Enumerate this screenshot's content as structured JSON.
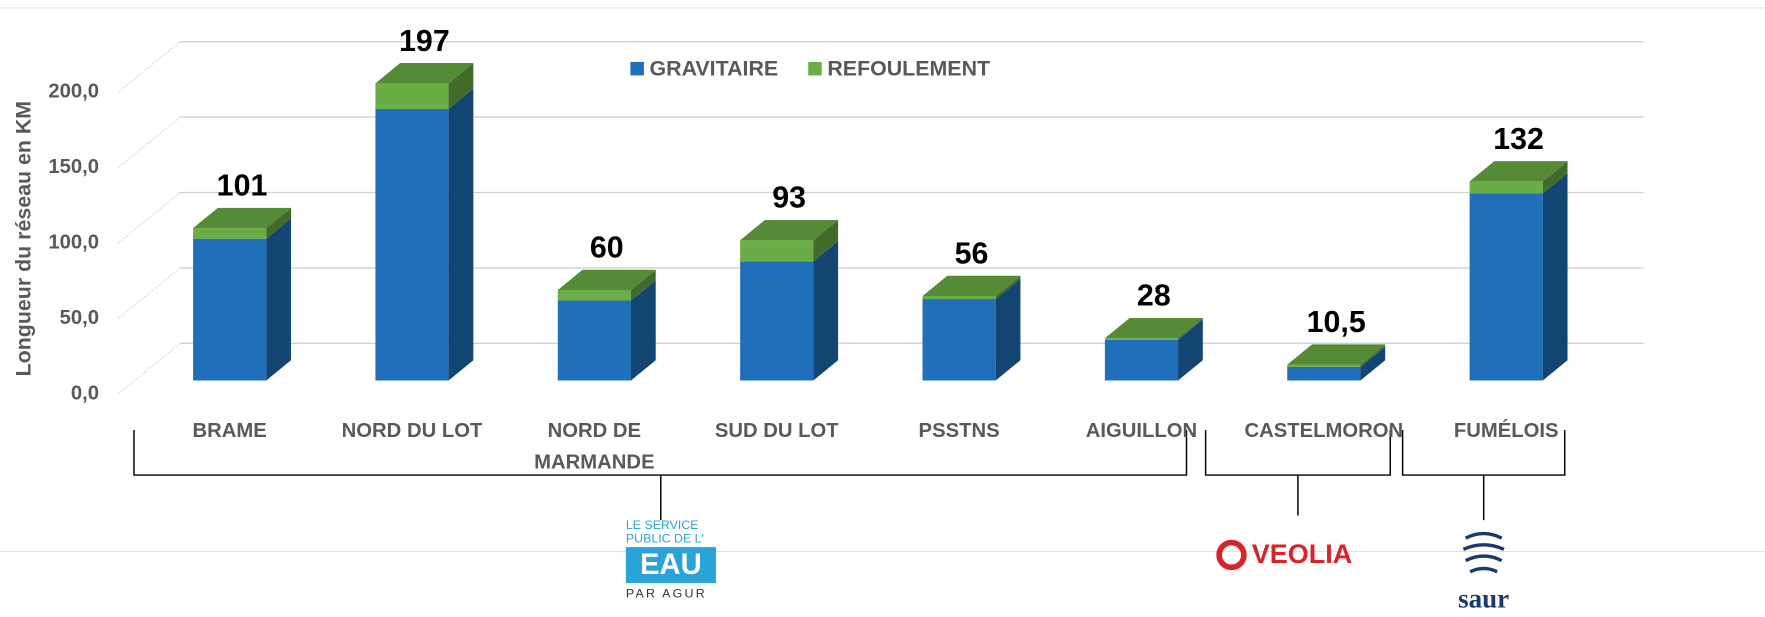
{
  "chart_data": {
    "type": "bar3d_stacked",
    "y_label": "Longueur du réseau en KM",
    "categories": [
      "BRAME",
      "NORD DU LOT",
      "NORD DE MARMANDE",
      "SUD DU LOT",
      "PSSTNS",
      "AIGUILLON",
      "CASTELMORON",
      "FUMÉLOIS"
    ],
    "series": [
      {
        "name": "GRAVITAIRE",
        "color": "#1f6fba",
        "values": [
          94,
          180,
          53,
          79,
          54,
          27,
          9,
          124
        ]
      },
      {
        "name": "REFOULEMENT",
        "color": "#6aad45",
        "values": [
          7,
          17,
          7,
          14,
          2,
          1,
          1.5,
          8
        ]
      }
    ],
    "totals": [
      101,
      197,
      60,
      93,
      56,
      28,
      10.5,
      132
    ],
    "total_labels": [
      "101",
      "197",
      "60",
      "93",
      "56",
      "28",
      "10,5",
      "132"
    ],
    "ylim": [
      0,
      200
    ],
    "yticks": [
      {
        "value": 0,
        "label": "0,0"
      },
      {
        "value": 50,
        "label": "50,0"
      },
      {
        "value": 100,
        "label": "100,0"
      },
      {
        "value": 150,
        "label": "150,0"
      },
      {
        "value": 200,
        "label": "200,0"
      }
    ],
    "grid": true,
    "legend": "top"
  },
  "groups": [
    {
      "logo": {
        "lines": [
          "LE SERVICE",
          "PUBLIC DE L'"
        ],
        "box": "EAU",
        "bottom": "PAR AGUR"
      }
    },
    {
      "logo": {
        "name": "VEOLIA"
      }
    },
    {
      "logo": {
        "name": "saur"
      }
    }
  ]
}
